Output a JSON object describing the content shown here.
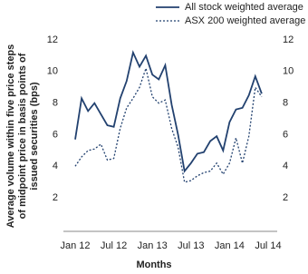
{
  "chart_data": {
    "type": "line",
    "ylabel": [
      "Average volume within five price steps",
      "of midpoint price in basis points of",
      "issued securities (bps)"
    ],
    "xlabel": "Months",
    "categories": [
      "Jan 12",
      null,
      null,
      null,
      null,
      null,
      "Jul 12",
      null,
      null,
      null,
      null,
      null,
      "Jan 13",
      null,
      null,
      null,
      null,
      null,
      "Jul 13",
      null,
      null,
      null,
      null,
      null,
      "Jan 14",
      null,
      null,
      null,
      null,
      null,
      "Jul 14"
    ],
    "series": [
      {
        "name": "All stock weighted average",
        "color": "#22416f",
        "dash": "solid",
        "values": [
          5.7,
          8.3,
          7.5,
          8.0,
          7.3,
          6.6,
          6.5,
          8.3,
          9.4,
          11.2,
          10.3,
          11.0,
          9.8,
          9.5,
          10.4,
          7.9,
          6.0,
          3.7,
          4.2,
          4.8,
          4.9,
          5.6,
          5.9,
          5.0,
          6.8,
          7.6,
          7.7,
          8.5,
          9.7,
          8.6,
          null
        ]
      },
      {
        "name": "ASX 200 weighted average",
        "color": "#22416f",
        "dash": "dotted",
        "values": [
          4.0,
          4.6,
          5.0,
          5.1,
          5.4,
          4.4,
          4.5,
          6.4,
          7.7,
          8.3,
          9.0,
          10.2,
          8.4,
          8.0,
          8.2,
          6.4,
          5.2,
          3.0,
          3.1,
          3.4,
          3.6,
          3.7,
          4.2,
          3.5,
          4.2,
          5.8,
          4.2,
          5.9,
          9.0,
          8.4,
          null
        ]
      }
    ],
    "ylim": [
      0,
      12
    ],
    "yticks": [
      2,
      4,
      6,
      8,
      10,
      12
    ],
    "y2lim": [
      0,
      12
    ],
    "y2ticks": [
      2,
      4,
      6,
      8,
      10,
      12
    ]
  }
}
